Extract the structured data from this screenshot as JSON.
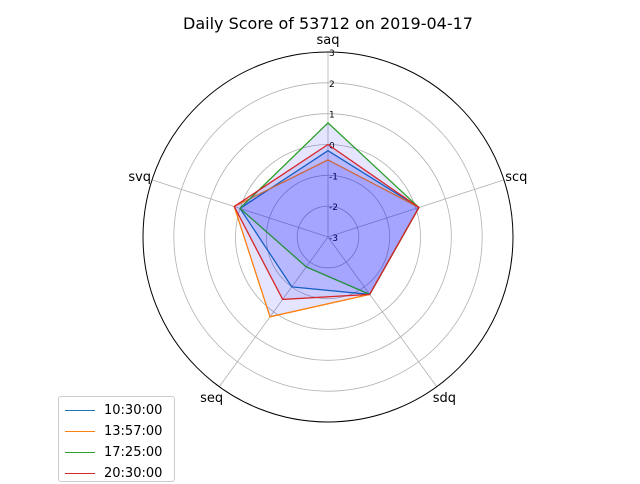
{
  "chart_data": {
    "type": "radar",
    "title": "Daily Score of 53712 on 2019-04-17",
    "axes": [
      "saq",
      "scq",
      "sdq",
      "seq",
      "svq"
    ],
    "rlim": [
      -3,
      3
    ],
    "radial_ticks": [
      "-3",
      "-2",
      "-1",
      "0",
      "1",
      "2",
      "3"
    ],
    "grid": true,
    "legend_position": "lower-left",
    "fill_color": "#0000ff",
    "series": [
      {
        "name": "10:30:00",
        "color": "#1f77b4",
        "values": [
          -0.2,
          0.1,
          -0.7,
          -1.0,
          0.0
        ]
      },
      {
        "name": "13:57:00",
        "color": "#ff7f0e",
        "values": [
          -0.5,
          0.1,
          -0.7,
          0.2,
          0.2
        ]
      },
      {
        "name": "17:25:00",
        "color": "#2ca02c",
        "values": [
          0.7,
          0.1,
          -0.7,
          -1.8,
          0.0
        ]
      },
      {
        "name": "20:30:00",
        "color": "#d62728",
        "values": [
          0.0,
          0.1,
          -0.7,
          -0.5,
          0.2
        ]
      }
    ]
  }
}
